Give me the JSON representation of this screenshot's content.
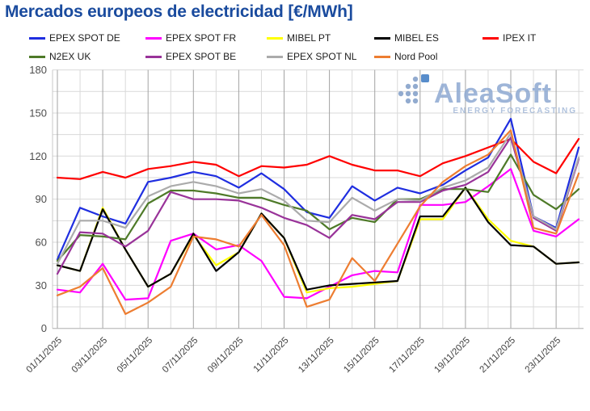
{
  "header": {
    "title": "Mercados europeos de electricidad [€/MWh]"
  },
  "watermark": {
    "brand": "AleaSoft",
    "tagline": "ENERGY FORECASTING",
    "brand_color": "#8ea9d2",
    "tagline_color": "#a3b8d8",
    "dots_color": "#7f9dc7",
    "accent_dot_color": "#3c7ac2"
  },
  "axis": {
    "y_tick_labels": [
      "0",
      "30",
      "60",
      "90",
      "120",
      "150",
      "180"
    ],
    "x_tick_labels": [
      "01/11/2025",
      "03/11/2025",
      "05/11/2025",
      "07/11/2025",
      "09/11/2025",
      "11/11/2025",
      "13/11/2025",
      "15/11/2025",
      "17/11/2025",
      "19/11/2025",
      "21/11/2025",
      "23/11/2025"
    ]
  },
  "chart_data": {
    "type": "line",
    "title": "Mercados europeos de electricidad [€/MWh]",
    "xlabel": "",
    "ylabel": "",
    "ylim": [
      0,
      180
    ],
    "y_ticks": [
      0,
      30,
      60,
      90,
      120,
      150,
      180
    ],
    "y_grid_step": 15,
    "grid": true,
    "legend_position": "top",
    "x_tick_every": 2,
    "x": [
      "01/11/2025",
      "02/11/2025",
      "03/11/2025",
      "04/11/2025",
      "05/11/2025",
      "06/11/2025",
      "07/11/2025",
      "08/11/2025",
      "09/11/2025",
      "10/11/2025",
      "11/11/2025",
      "12/11/2025",
      "13/11/2025",
      "14/11/2025",
      "15/11/2025",
      "16/11/2025",
      "17/11/2025",
      "18/11/2025",
      "19/11/2025",
      "20/11/2025",
      "21/11/2025",
      "22/11/2025",
      "23/11/2025",
      "24/11/2025"
    ],
    "series": [
      {
        "name": "EPEX SPOT DE",
        "slug": "epex-spot-de",
        "color": "#1f2ee0",
        "values": [
          48,
          84,
          78,
          73,
          102,
          105,
          109,
          106,
          98,
          108,
          97,
          81,
          77,
          99,
          89,
          98,
          94,
          100,
          110,
          119,
          146,
          78,
          70,
          126
        ]
      },
      {
        "name": "EPEX SPOT FR",
        "slug": "epex-spot-fr",
        "color": "#ff00ff",
        "values": [
          27,
          25,
          45,
          20,
          21,
          61,
          66,
          55,
          58,
          47,
          22,
          21,
          29,
          37,
          40,
          39,
          86,
          86,
          88,
          99,
          111,
          68,
          64,
          76
        ]
      },
      {
        "name": "MIBEL PT",
        "slug": "mibel-pt",
        "color": "#ffff00",
        "values": [
          44,
          40,
          84,
          55,
          29,
          38,
          65,
          44,
          53,
          80,
          63,
          25,
          28,
          29,
          31,
          33,
          76,
          76,
          98,
          76,
          61,
          57,
          45,
          46
        ]
      },
      {
        "name": "MIBEL ES",
        "slug": "mibel-es",
        "color": "#000000",
        "values": [
          44,
          40,
          83,
          55,
          29,
          38,
          66,
          40,
          53,
          80,
          63,
          27,
          30,
          31,
          32,
          33,
          78,
          78,
          98,
          74,
          58,
          57,
          45,
          46
        ]
      },
      {
        "name": "IPEX IT",
        "slug": "ipex-it",
        "color": "#ff0000",
        "values": [
          105,
          104,
          109,
          105,
          111,
          113,
          116,
          114,
          106,
          113,
          112,
          114,
          120,
          114,
          110,
          110,
          106,
          115,
          120,
          126,
          132,
          116,
          108,
          132
        ]
      },
      {
        "name": "N2EX UK",
        "slug": "n2ex-uk",
        "color": "#4e7a28",
        "values": [
          47,
          65,
          64,
          62,
          87,
          96,
          96,
          94,
          91,
          91,
          86,
          82,
          69,
          77,
          74,
          90,
          90,
          97,
          97,
          95,
          121,
          93,
          83,
          97
        ]
      },
      {
        "name": "EPEX SPOT BE",
        "slug": "epex-spot-be",
        "color": "#993399",
        "values": [
          38,
          67,
          66,
          57,
          68,
          95,
          90,
          90,
          89,
          84,
          77,
          72,
          63,
          79,
          76,
          88,
          88,
          96,
          100,
          109,
          133,
          77,
          68,
          118
        ]
      },
      {
        "name": "EPEX SPOT NL",
        "slug": "epex-spot-nl",
        "color": "#ababab",
        "values": [
          45,
          75,
          75,
          70,
          92,
          99,
          102,
          99,
          94,
          97,
          89,
          75,
          74,
          91,
          82,
          90,
          89,
          98,
          103,
          112,
          136,
          78,
          69,
          119
        ]
      },
      {
        "name": "Nord Pool",
        "slug": "nord-pool",
        "color": "#ed7d31",
        "values": [
          23,
          29,
          42,
          10,
          18,
          29,
          64,
          62,
          57,
          79,
          58,
          15,
          20,
          49,
          33,
          59,
          85,
          102,
          113,
          121,
          138,
          70,
          66,
          108
        ]
      }
    ]
  }
}
